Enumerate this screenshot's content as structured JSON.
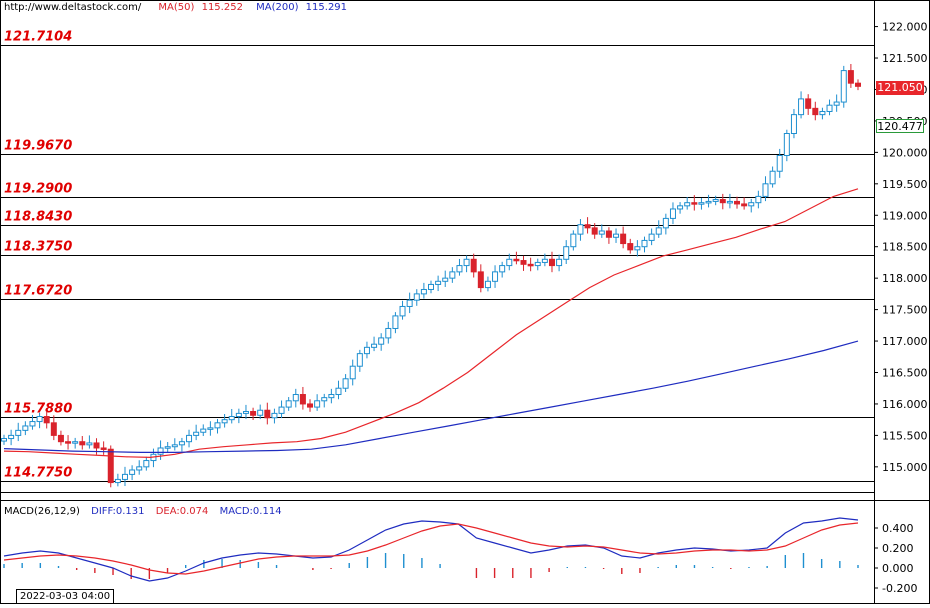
{
  "header": {
    "url": "http://www.deltastock.com/",
    "ma50_label": "MA(50)",
    "ma50_value": "115.252",
    "ma200_label": "MA(200)",
    "ma200_value": "115.291"
  },
  "macd_header": {
    "title": "MACD(26,12,9)",
    "diff_label": "DIFF:0.131",
    "dea_label": "DEA:0.074",
    "macd_label": "MACD:0.114"
  },
  "date_label": "2022-03-03 04:00",
  "price_badges": {
    "last": "121.050",
    "ref": "120.477"
  },
  "colors": {
    "up": "#1e8fd0",
    "down": "#d9232c",
    "ma50": "#e8262b",
    "ma200": "#1f2cc0",
    "level_text": "#e00000",
    "diff": "#1f2cc0",
    "dea": "#e8262b"
  },
  "chart_data": [
    {
      "type": "candlestick",
      "panel": "price",
      "ylim": [
        114.6,
        122.2
      ],
      "y_ticks": [
        "122.000",
        "121.500",
        "121.000",
        "120.500",
        "120.000",
        "119.500",
        "119.000",
        "118.500",
        "118.000",
        "117.500",
        "117.000",
        "116.500",
        "116.000",
        "115.500",
        "115.000"
      ],
      "levels": [
        "121.7104",
        "119.9670",
        "119.2900",
        "118.8430",
        "118.3750",
        "117.6720",
        "115.7880",
        "114.7750"
      ],
      "ohlc_close_path": [
        115.45,
        115.5,
        115.58,
        115.65,
        115.72,
        115.8,
        115.7,
        115.5,
        115.4,
        115.38,
        115.4,
        115.35,
        115.38,
        115.3,
        115.28,
        114.75,
        114.8,
        114.88,
        114.95,
        115.0,
        115.1,
        115.2,
        115.3,
        115.32,
        115.35,
        115.4,
        115.5,
        115.55,
        115.6,
        115.62,
        115.7,
        115.75,
        115.8,
        115.85,
        115.88,
        115.82,
        115.9,
        115.78,
        115.85,
        115.95,
        116.05,
        116.15,
        116.0,
        115.95,
        116.05,
        116.1,
        116.15,
        116.25,
        116.4,
        116.6,
        116.8,
        116.9,
        116.95,
        117.05,
        117.2,
        117.4,
        117.55,
        117.65,
        117.75,
        117.82,
        117.9,
        117.95,
        118.0,
        118.1,
        118.2,
        118.3,
        118.1,
        117.85,
        117.95,
        118.1,
        118.2,
        118.3,
        118.28,
        118.22,
        118.2,
        118.25,
        118.3,
        118.2,
        118.3,
        118.5,
        118.7,
        118.85,
        118.8,
        118.7,
        118.75,
        118.65,
        118.7,
        118.55,
        118.45,
        118.5,
        118.6,
        118.7,
        118.8,
        118.95,
        119.1,
        119.15,
        119.2,
        119.18,
        119.2,
        119.22,
        119.25,
        119.2,
        119.22,
        119.18,
        119.15,
        119.2,
        119.3,
        119.5,
        119.7,
        119.95,
        120.3,
        120.6,
        120.85,
        120.7,
        120.6,
        120.65,
        120.75,
        120.8,
        121.3,
        121.1,
        121.05
      ],
      "series": [
        {
          "name": "MA(50)",
          "values": [
            115.25,
            115.24,
            115.22,
            115.2,
            115.18,
            115.16,
            115.15,
            115.2,
            115.28,
            115.32,
            115.35,
            115.38,
            115.4,
            115.45,
            115.55,
            115.7,
            115.85,
            116.02,
            116.25,
            116.5,
            116.8,
            117.1,
            117.35,
            117.6,
            117.85,
            118.05,
            118.2,
            118.35,
            118.45,
            118.55,
            118.65,
            118.78,
            118.9,
            119.1,
            119.3,
            119.42
          ]
        },
        {
          "name": "MA(200)",
          "values": [
            115.29,
            115.27,
            115.25,
            115.24,
            115.23,
            115.23,
            115.24,
            115.25,
            115.26,
            115.28,
            115.35,
            115.45,
            115.55,
            115.65,
            115.75,
            115.85,
            115.95,
            116.05,
            116.15,
            116.25,
            116.36,
            116.48,
            116.6,
            116.72,
            116.85,
            117.0
          ]
        }
      ]
    },
    {
      "type": "macd",
      "panel": "indicator",
      "ylim": [
        -0.3,
        0.58
      ],
      "y_ticks": [
        "0.400",
        "0.200",
        "0.000",
        "-0.200"
      ],
      "series": [
        {
          "name": "DIFF",
          "values": [
            0.12,
            0.15,
            0.17,
            0.15,
            0.1,
            0.05,
            0.0,
            -0.08,
            -0.13,
            -0.1,
            -0.03,
            0.05,
            0.1,
            0.13,
            0.15,
            0.14,
            0.12,
            0.1,
            0.11,
            0.18,
            0.28,
            0.38,
            0.44,
            0.47,
            0.46,
            0.44,
            0.3,
            0.25,
            0.2,
            0.15,
            0.18,
            0.22,
            0.23,
            0.2,
            0.12,
            0.1,
            0.15,
            0.18,
            0.2,
            0.19,
            0.17,
            0.18,
            0.2,
            0.35,
            0.45,
            0.47,
            0.5,
            0.48
          ]
        },
        {
          "name": "DEA",
          "values": [
            0.08,
            0.1,
            0.12,
            0.13,
            0.12,
            0.1,
            0.07,
            0.03,
            -0.02,
            -0.05,
            -0.06,
            -0.03,
            0.01,
            0.05,
            0.09,
            0.11,
            0.12,
            0.12,
            0.12,
            0.13,
            0.17,
            0.23,
            0.3,
            0.37,
            0.42,
            0.44,
            0.4,
            0.35,
            0.3,
            0.25,
            0.22,
            0.21,
            0.22,
            0.21,
            0.18,
            0.15,
            0.14,
            0.15,
            0.17,
            0.18,
            0.18,
            0.17,
            0.18,
            0.22,
            0.3,
            0.38,
            0.43,
            0.45
          ]
        }
      ],
      "histogram": [
        0.04,
        0.05,
        0.05,
        0.02,
        -0.02,
        -0.05,
        -0.07,
        -0.11,
        -0.11,
        -0.05,
        0.03,
        0.08,
        0.09,
        0.08,
        0.06,
        0.03,
        0.0,
        -0.02,
        -0.01,
        0.05,
        0.11,
        0.15,
        0.14,
        0.1,
        0.04,
        0.0,
        -0.1,
        -0.1,
        -0.1,
        -0.1,
        -0.04,
        0.01,
        0.01,
        -0.01,
        -0.06,
        -0.05,
        0.01,
        0.03,
        0.03,
        0.01,
        -0.01,
        0.01,
        0.02,
        0.13,
        0.15,
        0.09,
        0.07,
        0.03
      ]
    }
  ]
}
